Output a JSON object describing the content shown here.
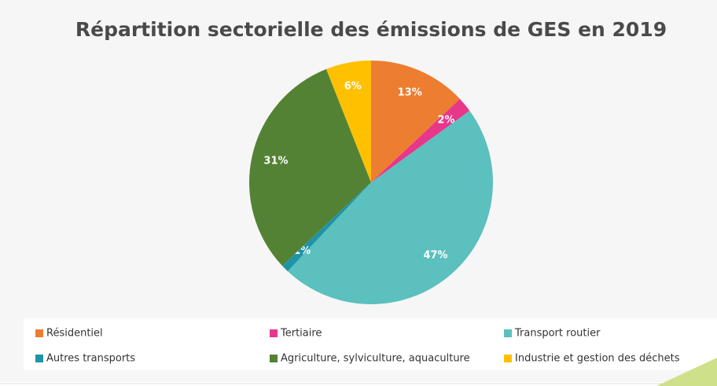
{
  "chart_data": {
    "type": "pie",
    "title": "Répartition sectorielle des émissions de GES en 2019",
    "categories": [
      "Résidentiel",
      "Tertiaire",
      "Transport routier",
      "Autres transports",
      "Agriculture, sylviculture, aquaculture",
      "Industrie et gestion des déchets"
    ],
    "values": [
      13,
      2,
      47,
      1,
      31,
      6
    ],
    "value_labels": [
      "13%",
      "2%",
      "47%",
      "1%",
      "31%",
      "6%"
    ],
    "colors": [
      "#ED7D31",
      "#E8368A",
      "#5BC0BE",
      "#1F94A8",
      "#548235",
      "#FFC000"
    ]
  }
}
